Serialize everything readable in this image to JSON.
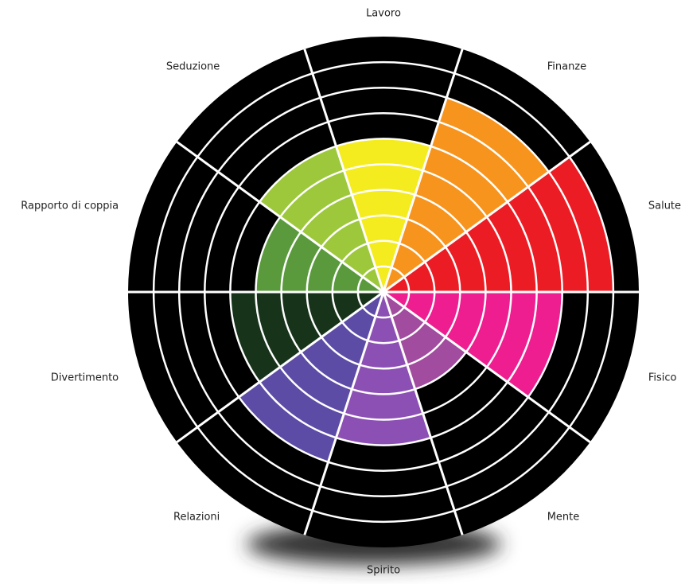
{
  "chart_data": {
    "type": "polar",
    "categories": [
      "Lavoro",
      "Finanze",
      "Salute",
      "Fisico",
      "Mente",
      "Spirito",
      "Relazioni",
      "Divertimento",
      "Rapporto di coppia",
      "Seduzione"
    ],
    "values": [
      6,
      8,
      9,
      7,
      4,
      6,
      7,
      6,
      5,
      6
    ],
    "colors": [
      "#f4ec1e",
      "#f7941d",
      "#ec1c24",
      "#ee1e91",
      "#a14c9e",
      "#8c50b4",
      "#5c4ca6",
      "#17341a",
      "#5a9a3c",
      "#9dc83b"
    ],
    "rlim": [
      0,
      10
    ],
    "rticks": [
      1,
      2,
      3,
      4,
      5,
      6,
      7,
      8,
      9,
      10
    ],
    "grid": true
  }
}
